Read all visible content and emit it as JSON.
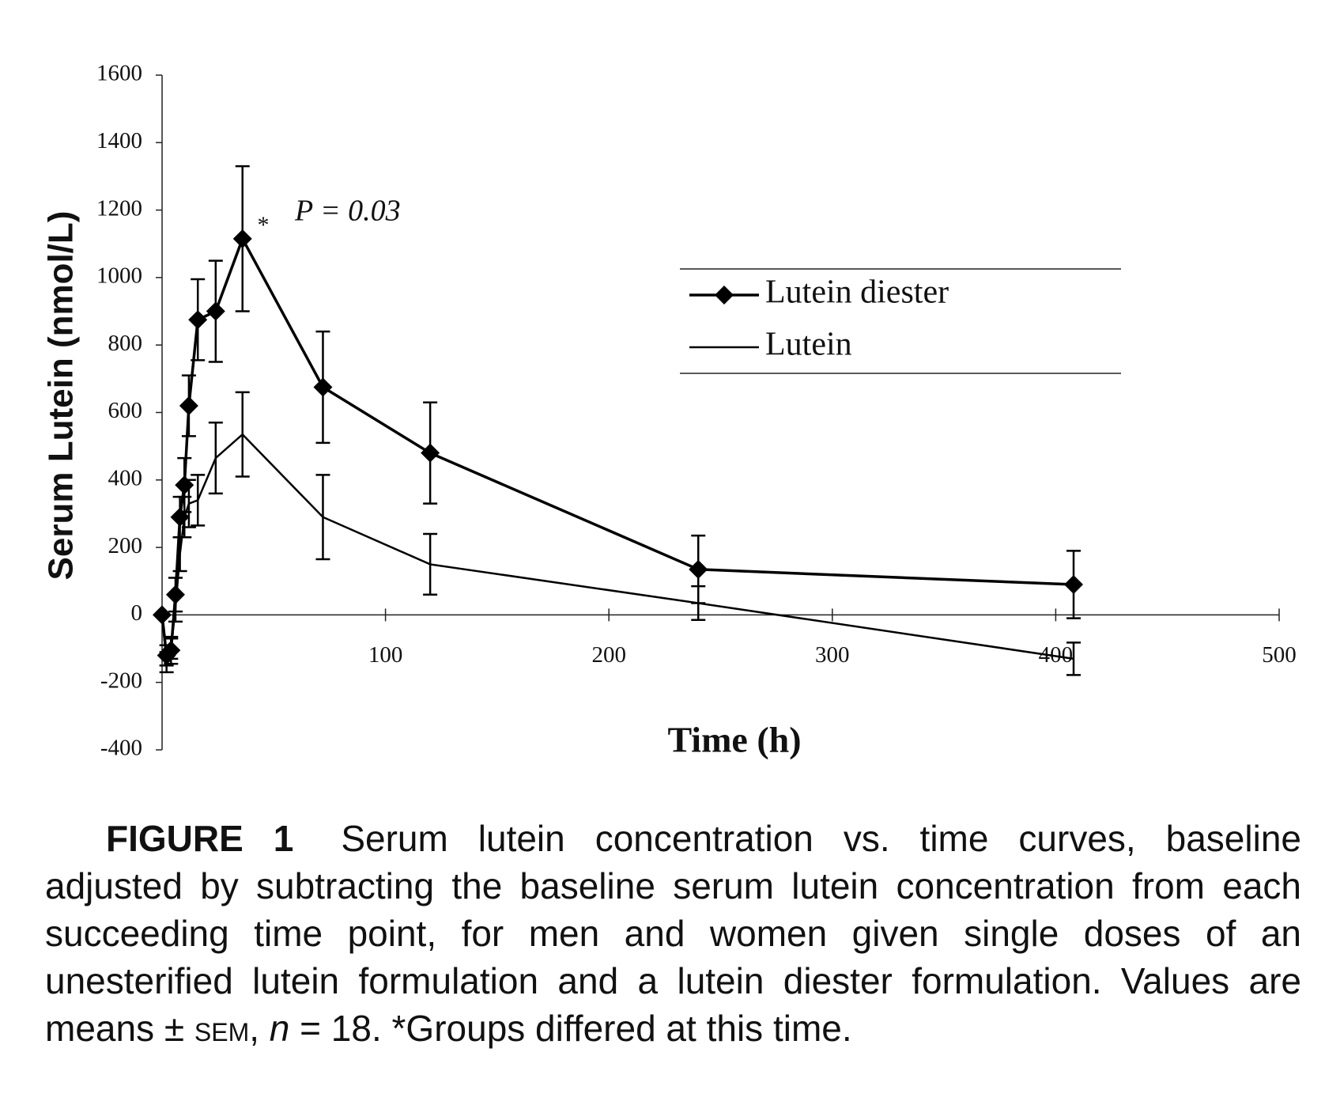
{
  "chart_data": {
    "type": "line",
    "xlabel": "Time (h)",
    "ylabel": "Serum Lutein (nmol/L)",
    "xlim": [
      0,
      500
    ],
    "xticks": [
      100,
      200,
      300,
      400,
      500
    ],
    "ylim": [
      -400,
      1600
    ],
    "yticks": [
      -400,
      -200,
      0,
      200,
      400,
      600,
      800,
      1000,
      1200,
      1400,
      1600
    ],
    "x": [
      0,
      2,
      4,
      6,
      8,
      10,
      12,
      16,
      24,
      36,
      72,
      120,
      240,
      408
    ],
    "series": [
      {
        "name": "Lutein diester",
        "color": "#000000",
        "marker": "diamond",
        "values": [
          0,
          -120,
          -105,
          60,
          290,
          385,
          620,
          875,
          900,
          1115,
          675,
          480,
          135,
          90
        ],
        "errors": [
          0,
          30,
          40,
          50,
          60,
          80,
          90,
          120,
          150,
          215,
          165,
          150,
          100,
          100
        ]
      },
      {
        "name": "Lutein",
        "color": "#000000",
        "marker": "none",
        "values": [
          0,
          -140,
          -100,
          20,
          180,
          290,
          330,
          340,
          465,
          535,
          290,
          150,
          35,
          -130
        ],
        "errors": [
          0,
          30,
          30,
          40,
          50,
          60,
          70,
          75,
          105,
          125,
          125,
          90,
          50,
          48
        ]
      }
    ],
    "annotations": [
      "*",
      "P = 0.03"
    ],
    "legend": "upper right"
  },
  "caption": {
    "label": "FIGURE 1",
    "parts": [
      "Serum lutein concentration vs. time curves, baseline adjusted by subtracting the baseline serum lutein concentration from each succeeding time point, for men and women given single doses of an unesterified lutein formulation and a lutein diester formulation. Values are means ±",
      "SEM",
      ", ",
      "n",
      " = 18. *Groups differed at this time."
    ]
  }
}
